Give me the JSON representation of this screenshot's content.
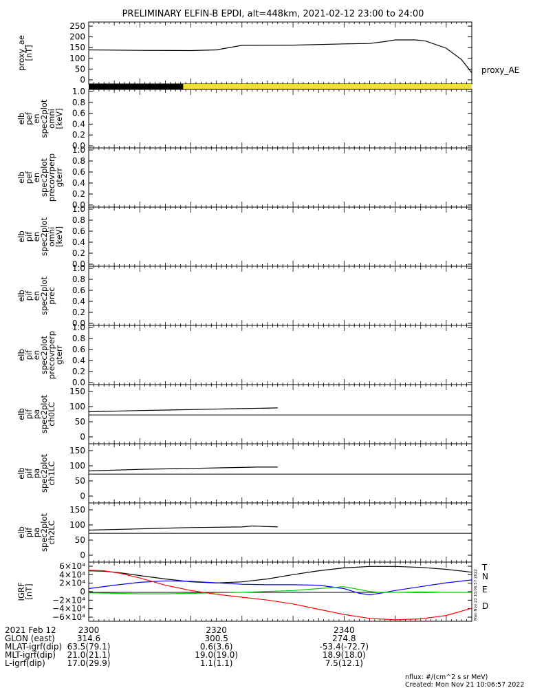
{
  "title": "PRELIMINARY ELFIN-B EPDI, alt=448km, 2021-02-12 23:00 to 24:00",
  "credits": {
    "units": "nflux: #/(cm^2 s sr MeV)",
    "created": "Created: Mon Nov 21 10:06:57 2022",
    "vertical_stamp": "Mon Nov 21 10:06:57 2022"
  },
  "footer": {
    "rows": [
      {
        "label": "2021 Feb 12",
        "values": [
          "2300",
          "2320",
          "2340"
        ]
      },
      {
        "label": "GLON (east)",
        "values": [
          "314.6",
          "300.5",
          "274.8"
        ]
      },
      {
        "label": "MLAT-igrf(dip)",
        "values": [
          "63.5(79.1)",
          "0.6(3.6)",
          "-53.4(-72.7)"
        ]
      },
      {
        "label": "MLT-igrf(dip)",
        "values": [
          "21.0(21.1)",
          "19.0(19.0)",
          "18.9(18.0)"
        ]
      },
      {
        "label": "L-igrf(dip)",
        "values": [
          "17.0(29.9)",
          "1.1(1.1)",
          "7.5(12.1)"
        ]
      }
    ]
  },
  "colors": {
    "black": "#000000",
    "yellow": "#f2e22a",
    "T": "#000000",
    "N": "#0000ff",
    "E": "#00cc00",
    "D": "#ff0000"
  },
  "chart_data": [
    {
      "type": "line",
      "ylabel": [
        "proxy_ae",
        "[nT]"
      ],
      "yticks": [
        "250",
        "200",
        "150",
        "100",
        "50",
        "0"
      ],
      "ylim": [
        0,
        260
      ],
      "legend": "proxy_AE",
      "series": [
        {
          "name": "proxy_AE",
          "x": [
            0,
            10,
            20,
            25,
            30,
            40,
            50,
            55,
            58,
            60,
            61,
            62,
            64,
            66,
            70,
            73,
            75
          ],
          "y": [
            143,
            141,
            140,
            143,
            162,
            163,
            168,
            170,
            178,
            185,
            185,
            185,
            185,
            180,
            150,
            102,
            47
          ]
        }
      ]
    },
    {
      "type": "bar",
      "segments": [
        {
          "color": "black",
          "x": [
            0,
            18.5
          ]
        },
        {
          "color": "yellow",
          "x": [
            18.5,
            75
          ]
        }
      ]
    },
    {
      "type": "heatmap",
      "ylabel": [
        "elb",
        "pef",
        "en",
        "spec2plot",
        "omni",
        "[keV]"
      ],
      "yticks": [
        "1.0",
        "0.8",
        "0.6",
        "0.4",
        "0.2",
        "0.0"
      ]
    },
    {
      "type": "heatmap",
      "ylabel": [
        "elb",
        "pef",
        "en",
        "spec2plot",
        "precovrperp",
        "gterr"
      ],
      "yticks": [
        "1.0",
        "0.8",
        "0.6",
        "0.4",
        "0.2",
        "0.0"
      ]
    },
    {
      "type": "heatmap",
      "ylabel": [
        "elb",
        "pif",
        "en",
        "spec2plot",
        "omni",
        "[keV]"
      ],
      "yticks": [
        "1.0",
        "0.8",
        "0.6",
        "0.4",
        "0.2",
        "0.0"
      ]
    },
    {
      "type": "heatmap",
      "ylabel": [
        "elb",
        "pif",
        "en",
        "spec2plot",
        "prec"
      ],
      "yticks": [
        "1.0",
        "0.8",
        "0.6",
        "0.4",
        "0.2",
        "0.0"
      ]
    },
    {
      "type": "heatmap",
      "ylabel": [
        "elb",
        "pif",
        "en",
        "spec2plot",
        "precovrperp",
        "gterr"
      ],
      "yticks": [
        "1.0",
        "0.8",
        "0.6",
        "0.4",
        "0.2",
        "0.0"
      ]
    },
    {
      "type": "line",
      "ylabel": [
        "elb",
        "pif",
        "pa",
        "spec2plot",
        "ch0LC"
      ],
      "yticks": [
        "150",
        "100",
        "50",
        "0"
      ],
      "ylim": [
        0,
        185
      ],
      "hline": 90,
      "series": [
        {
          "x": [
            0,
            10,
            20,
            30,
            37
          ],
          "y": [
            100,
            104,
            107,
            110,
            112
          ]
        }
      ]
    },
    {
      "type": "line",
      "ylabel": [
        "elb",
        "pif",
        "pa",
        "spec2plot",
        "ch1LC"
      ],
      "yticks": [
        "150",
        "100",
        "50",
        "0"
      ],
      "ylim": [
        0,
        185
      ],
      "hline": 90,
      "series": [
        {
          "x": [
            0,
            10,
            20,
            30,
            33,
            37
          ],
          "y": [
            100,
            105,
            108,
            111,
            112,
            112
          ]
        }
      ]
    },
    {
      "type": "line",
      "ylabel": [
        "elb",
        "pif",
        "pa",
        "spec2plot",
        "ch2LC"
      ],
      "yticks": [
        "150",
        "100",
        "50",
        "0"
      ],
      "ylim": [
        0,
        185
      ],
      "hline": 90,
      "series": [
        {
          "x": [
            0,
            10,
            20,
            30,
            32,
            37
          ],
          "y": [
            100,
            104,
            108,
            110,
            113,
            110
          ]
        }
      ]
    },
    {
      "type": "line",
      "ylabel": [
        "IGRF",
        "[nT]"
      ],
      "yticks": [
        "6×10⁴",
        "4×10⁴",
        "2×10⁴",
        "0",
        "−2×10⁴",
        "−4×10⁴",
        "−6×10⁴"
      ],
      "ylim": [
        -60000,
        63000
      ],
      "hline": 0,
      "series": [
        {
          "name": "T",
          "color": "T",
          "x": [
            0,
            3,
            6,
            10,
            15,
            20,
            25,
            30,
            35,
            40,
            45,
            50,
            55,
            60,
            65,
            70,
            75
          ],
          "y": [
            45000,
            44000,
            41000,
            35000,
            28000,
            22000,
            19500,
            22000,
            28000,
            37000,
            45000,
            51000,
            54000,
            54000,
            52000,
            48000,
            42000
          ]
        },
        {
          "name": "N",
          "color": "N",
          "x": [
            0,
            5,
            10,
            15,
            20,
            25,
            30,
            35,
            40,
            45,
            50,
            53,
            55,
            57,
            60,
            65,
            70,
            75
          ],
          "y": [
            8000,
            15000,
            21000,
            24000,
            23000,
            20000,
            17000,
            16000,
            16000,
            15000,
            8000,
            -2000,
            -5000,
            -2000,
            4000,
            12000,
            20000,
            26000
          ]
        },
        {
          "name": "E",
          "color": "E",
          "x": [
            0,
            5,
            10,
            15,
            20,
            25,
            30,
            35,
            40,
            45,
            50,
            55,
            57,
            60,
            65,
            70,
            75
          ],
          "y": [
            -1000,
            -2000,
            -3000,
            -3000,
            -2000,
            -1000,
            0,
            2000,
            4000,
            8000,
            12000,
            2000,
            0,
            0,
            1000,
            0,
            0
          ]
        },
        {
          "name": "D",
          "color": "D",
          "x": [
            0,
            3,
            6,
            10,
            15,
            20,
            25,
            30,
            35,
            40,
            45,
            50,
            55,
            60,
            65,
            70,
            75
          ],
          "y": [
            46000,
            45000,
            40000,
            30000,
            15000,
            4000,
            -4000,
            -10000,
            -16000,
            -24000,
            -35000,
            -46000,
            -54000,
            -57000,
            -55000,
            -48000,
            -33000
          ]
        }
      ]
    }
  ]
}
